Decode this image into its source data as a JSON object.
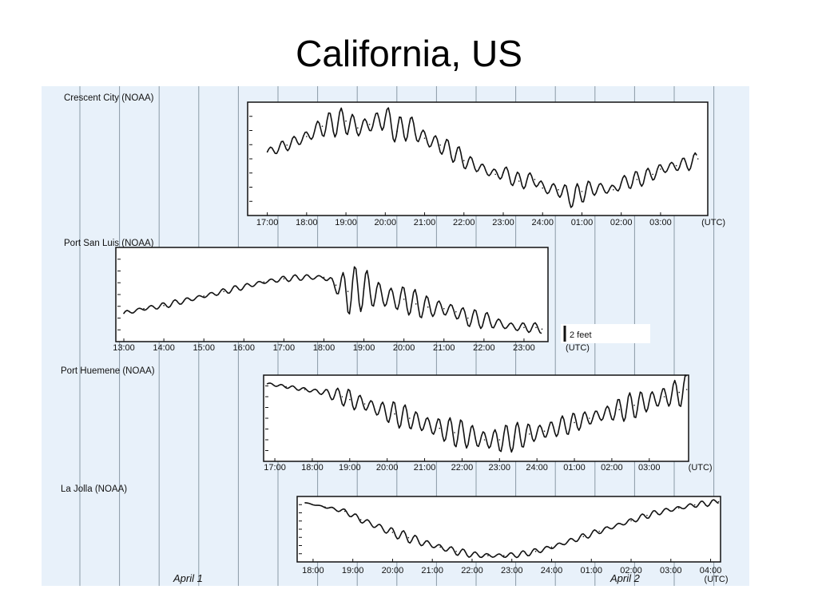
{
  "slide": {
    "title": "California, US"
  },
  "figure": {
    "background_color": "#e8f1fa",
    "day_labels": [
      "April 1",
      "April 2"
    ],
    "scale_bar_label": "2 feet",
    "unit_label": "(UTC)"
  },
  "chart_data": [
    {
      "type": "line",
      "title": "Crescent City (NOAA)",
      "x_ticks": [
        "17:00",
        "18:00",
        "19:00",
        "20:00",
        "21:00",
        "22:00",
        "23:00",
        "24:00",
        "01:00",
        "02:00",
        "03:00",
        "(UTC)"
      ],
      "x": [
        17.0,
        17.5,
        18.0,
        18.4,
        18.8,
        19.0,
        19.3,
        19.6,
        20.0,
        20.3,
        20.6,
        21.0,
        21.4,
        21.8,
        22.0,
        22.4,
        22.8,
        23.0,
        23.4,
        23.8,
        24.0,
        24.4,
        24.8,
        25.0,
        25.4,
        25.8,
        26.0,
        26.4,
        26.8,
        27.0,
        27.4,
        27.8,
        27.95
      ],
      "y": [
        0.1,
        0.5,
        1.0,
        1.6,
        1.8,
        1.9,
        1.5,
        1.7,
        2.1,
        1.3,
        1.6,
        0.9,
        0.5,
        0.0,
        -0.4,
        -0.8,
        -1.2,
        -1.1,
        -1.6,
        -1.5,
        -2.0,
        -2.1,
        -2.6,
        -2.2,
        -2.0,
        -2.1,
        -1.7,
        -1.5,
        -1.2,
        -0.9,
        -0.7,
        -0.5,
        -0.3
      ],
      "amplitude": [
        0.2,
        0.4,
        0.6,
        0.8,
        0.8,
        0.9,
        0.8,
        0.8,
        0.9,
        0.8,
        0.9,
        0.8,
        0.7,
        0.6,
        0.5,
        0.5,
        0.5,
        0.5,
        0.5,
        0.5,
        0.6,
        0.6,
        0.7,
        0.7,
        0.5,
        0.5,
        0.5,
        0.5,
        0.5,
        0.5,
        0.5,
        0.5,
        0.4
      ],
      "ylim": [
        -3.6,
        3.0
      ]
    },
    {
      "type": "line",
      "title": "Port San Luis (NOAA)",
      "x_ticks": [
        "13:00",
        "14:00",
        "15:00",
        "16:00",
        "17:00",
        "18:00",
        "19:00",
        "20:00",
        "21:00",
        "22:00",
        "23:00",
        "(UTC)"
      ],
      "x": [
        13.0,
        13.5,
        14.0,
        14.5,
        15.0,
        15.5,
        16.0,
        16.5,
        17.0,
        17.5,
        18.0,
        18.3,
        18.6,
        19.0,
        19.3,
        19.6,
        20.0,
        20.3,
        20.6,
        21.0,
        21.3,
        21.6,
        22.0,
        22.3,
        22.6,
        23.0,
        23.3,
        23.45
      ],
      "y": [
        -1.2,
        -0.9,
        -0.7,
        -0.4,
        -0.1,
        0.2,
        0.5,
        0.8,
        1.0,
        1.1,
        1.1,
        0.6,
        0.2,
        0.4,
        0.1,
        -0.2,
        -0.3,
        -0.6,
        -0.8,
        -0.9,
        -1.1,
        -1.5,
        -1.6,
        -1.8,
        -2.0,
        -2.1,
        -2.1,
        -2.2
      ],
      "amplitude": [
        0.2,
        0.2,
        0.2,
        0.2,
        0.2,
        0.2,
        0.2,
        0.2,
        0.2,
        0.2,
        0.2,
        0.7,
        1.6,
        1.5,
        1.4,
        1.2,
        1.0,
        0.9,
        0.8,
        0.8,
        0.7,
        0.6,
        0.6,
        0.5,
        0.4,
        0.4,
        0.3,
        0.3
      ],
      "ylim": [
        -3.0,
        3.0
      ]
    },
    {
      "type": "line",
      "title": "Port Huemene (NOAA)",
      "x_ticks": [
        "17:00",
        "18:00",
        "19:00",
        "20:00",
        "21:00",
        "22:00",
        "23:00",
        "24:00",
        "01:00",
        "02:00",
        "03:00",
        "(UTC)"
      ],
      "x": [
        16.8,
        17.3,
        17.8,
        18.3,
        18.8,
        19.0,
        19.4,
        19.8,
        20.2,
        20.6,
        21.0,
        21.4,
        21.8,
        22.2,
        22.6,
        23.0,
        23.4,
        23.8,
        24.2,
        24.6,
        25.0,
        25.4,
        25.8,
        26.2,
        26.6,
        27.0,
        27.4,
        27.8,
        28.0
      ],
      "y": [
        2.4,
        2.2,
        2.0,
        1.8,
        1.5,
        1.3,
        1.0,
        0.6,
        0.3,
        0.0,
        -0.4,
        -0.7,
        -1.0,
        -1.2,
        -1.5,
        -1.5,
        -1.3,
        -1.1,
        -0.9,
        -0.6,
        -0.3,
        0.0,
        0.3,
        0.6,
        0.9,
        1.2,
        1.5,
        1.8,
        2.0
      ],
      "amplitude": [
        0.1,
        0.1,
        0.2,
        0.3,
        0.6,
        0.8,
        0.8,
        0.8,
        0.9,
        0.9,
        1.0,
        1.0,
        1.0,
        1.1,
        1.1,
        1.1,
        1.0,
        1.0,
        0.9,
        0.8,
        0.7,
        0.7,
        0.8,
        0.9,
        1.0,
        1.1,
        1.1,
        1.1,
        1.1
      ],
      "ylim": [
        -3.0,
        3.0
      ]
    },
    {
      "type": "line",
      "title": "La Jolla (NOAA)",
      "x_ticks": [
        "18:00",
        "19:00",
        "20:00",
        "21:00",
        "22:00",
        "23:00",
        "24:00",
        "01:00",
        "02:00",
        "03:00",
        "04:00"
      ],
      "x": [
        17.8,
        18.3,
        18.8,
        19.2,
        19.6,
        20.0,
        20.4,
        20.8,
        21.2,
        21.6,
        22.0,
        22.4,
        22.8,
        23.2,
        23.6,
        24.0,
        24.4,
        24.8,
        25.2,
        25.6,
        26.0,
        26.4,
        26.8,
        27.2,
        27.6,
        28.0,
        28.2
      ],
      "y": [
        2.6,
        2.2,
        1.8,
        1.0,
        0.4,
        -0.2,
        -0.7,
        -1.2,
        -1.6,
        -2.0,
        -2.3,
        -2.4,
        -2.4,
        -2.3,
        -2.0,
        -1.6,
        -1.1,
        -0.6,
        -0.1,
        0.4,
        0.9,
        1.4,
        1.8,
        2.1,
        2.4,
        2.6,
        2.7
      ],
      "amplitude": [
        0.05,
        0.1,
        0.2,
        0.4,
        0.5,
        0.5,
        0.5,
        0.5,
        0.4,
        0.4,
        0.3,
        0.3,
        0.3,
        0.3,
        0.3,
        0.3,
        0.3,
        0.3,
        0.3,
        0.3,
        0.3,
        0.3,
        0.3,
        0.3,
        0.3,
        0.3,
        0.2
      ],
      "ylim": [
        -3.0,
        3.2
      ]
    }
  ]
}
